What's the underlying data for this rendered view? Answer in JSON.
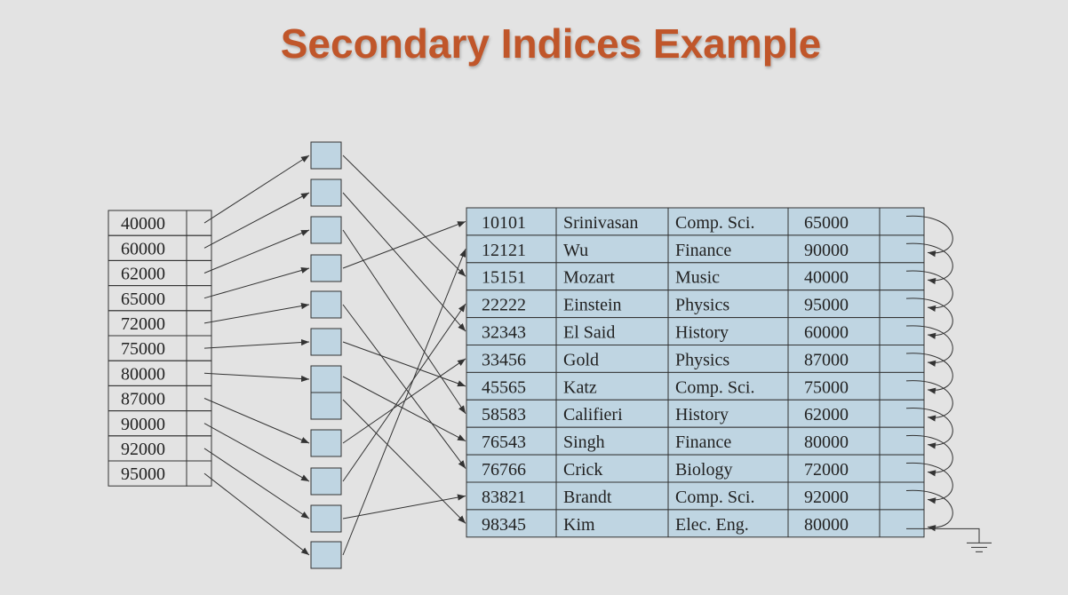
{
  "title": "Secondary Indices Example",
  "colors": {
    "title": "#c0562a",
    "cell_fill": "#bfd5e2",
    "border": "#333333",
    "background": "#e3e3e3"
  },
  "index_keys": [
    "40000",
    "60000",
    "62000",
    "65000",
    "72000",
    "75000",
    "80000",
    "87000",
    "90000",
    "92000",
    "95000"
  ],
  "bucket_count": 12,
  "records": [
    {
      "id": "10101",
      "name": "Srinivasan",
      "dept": "Comp. Sci.",
      "salary": "65000"
    },
    {
      "id": "12121",
      "name": "Wu",
      "dept": "Finance",
      "salary": "90000"
    },
    {
      "id": "15151",
      "name": "Mozart",
      "dept": "Music",
      "salary": "40000"
    },
    {
      "id": "22222",
      "name": "Einstein",
      "dept": "Physics",
      "salary": "95000"
    },
    {
      "id": "32343",
      "name": "El Said",
      "dept": "History",
      "salary": "60000"
    },
    {
      "id": "33456",
      "name": "Gold",
      "dept": "Physics",
      "salary": "87000"
    },
    {
      "id": "45565",
      "name": "Katz",
      "dept": "Comp. Sci.",
      "salary": "75000"
    },
    {
      "id": "58583",
      "name": "Califieri",
      "dept": "History",
      "salary": "62000"
    },
    {
      "id": "76543",
      "name": "Singh",
      "dept": "Finance",
      "salary": "80000"
    },
    {
      "id": "76766",
      "name": "Crick",
      "dept": "Biology",
      "salary": "72000"
    },
    {
      "id": "83821",
      "name": "Brandt",
      "dept": "Comp. Sci.",
      "salary": "92000"
    },
    {
      "id": "98345",
      "name": "Kim",
      "dept": "Elec. Eng.",
      "salary": "80000"
    }
  ]
}
